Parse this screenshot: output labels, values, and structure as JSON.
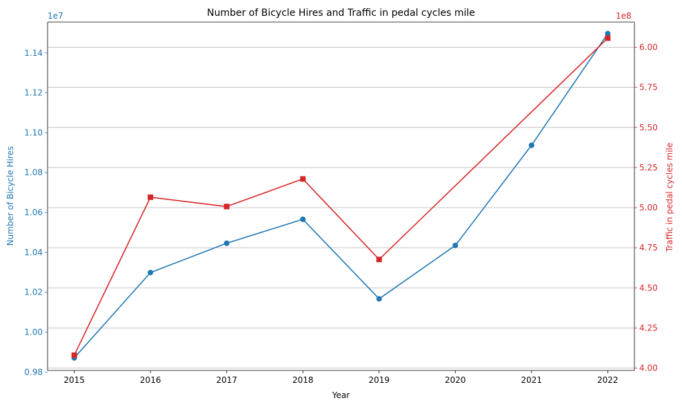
{
  "chart_data": {
    "type": "line",
    "title": "Number of Bicycle Hires and Traffic in pedal cycles mile",
    "xlabel": "Year",
    "x": [
      2015,
      2016,
      2017,
      2018,
      2019,
      2020,
      2021,
      2022
    ],
    "x_ticks": [
      "2015",
      "2016",
      "2017",
      "2018",
      "2019",
      "2020",
      "2021",
      "2022"
    ],
    "left_axis": {
      "label": "Number of Bicycle Hires",
      "offset_label": "1e7",
      "color": "#1f77b4",
      "ylim": [
        0.9808,
        1.1555
      ],
      "ticks": [
        0.98,
        1.0,
        1.02,
        1.04,
        1.06,
        1.08,
        1.1,
        1.12,
        1.14
      ],
      "tick_labels": [
        "0.98",
        "1.00",
        "1.02",
        "1.04",
        "1.06",
        "1.08",
        "1.10",
        "1.12",
        "1.14"
      ]
    },
    "right_axis": {
      "label": "Traffic in pedal cycles mile",
      "offset_label": "1e8",
      "color": "#d62728",
      "ylim": [
        3.985,
        6.157
      ],
      "ticks": [
        4.0,
        4.25,
        4.5,
        4.75,
        5.0,
        5.25,
        5.5,
        5.75,
        6.0
      ],
      "tick_labels": [
        "4.00",
        "4.25",
        "4.50",
        "4.75",
        "5.00",
        "5.25",
        "5.50",
        "5.75",
        "6.00"
      ]
    },
    "grid": "right-axis horizontal",
    "series": [
      {
        "name": "Number of Bicycle Hires",
        "axis": "left",
        "color": "#1f77b4",
        "marker": "circle",
        "values": [
          9871046,
          10298934,
          10445869,
          10566011,
          10167011,
          10435011,
          10937011,
          11497011
        ]
      },
      {
        "name": "Traffic in pedal cycles mile",
        "axis": "right",
        "color": "#d62728",
        "marker": "square",
        "values": [
          408000000,
          506500000,
          500700000,
          517900000,
          467700000,
          null,
          null,
          605700000
        ]
      }
    ]
  }
}
